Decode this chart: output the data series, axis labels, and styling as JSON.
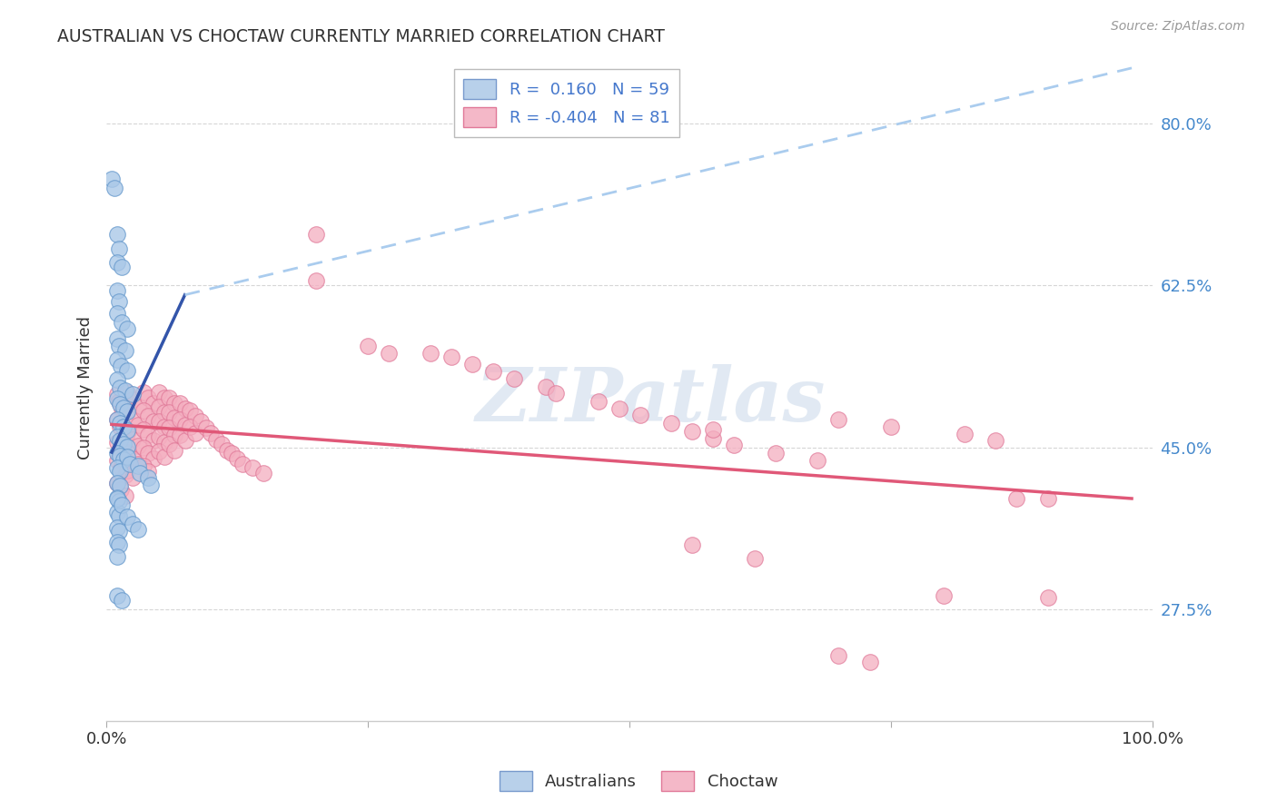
{
  "title": "AUSTRALIAN VS CHOCTAW CURRENTLY MARRIED CORRELATION CHART",
  "source": "Source: ZipAtlas.com",
  "ylabel": "Currently Married",
  "ytick_labels": [
    "27.5%",
    "45.0%",
    "62.5%",
    "80.0%"
  ],
  "ytick_values": [
    0.275,
    0.45,
    0.625,
    0.8
  ],
  "xlim": [
    0.0,
    1.0
  ],
  "ylim": [
    0.155,
    0.875
  ],
  "watermark": "ZIPatlas",
  "australian_color": "#aac8e8",
  "australian_edge": "#6699cc",
  "choctaw_color": "#f4aec0",
  "choctaw_edge": "#e07898",
  "trend_australian_solid_color": "#3355aa",
  "trend_dash_color": "#aaccee",
  "trend_choctaw_color": "#e05878",
  "trend_aus_x0": 0.005,
  "trend_aus_x_solid_end": 0.075,
  "trend_aus_x_dash_end": 0.98,
  "trend_aus_y0": 0.445,
  "trend_aus_y_solid_end": 0.615,
  "trend_aus_y_dash_end": 0.86,
  "trend_choc_x0": 0.005,
  "trend_choc_x1": 0.98,
  "trend_choc_y0": 0.475,
  "trend_choc_y1": 0.395,
  "australian_points": [
    [
      0.005,
      0.74
    ],
    [
      0.008,
      0.73
    ],
    [
      0.01,
      0.68
    ],
    [
      0.012,
      0.665
    ],
    [
      0.01,
      0.65
    ],
    [
      0.015,
      0.645
    ],
    [
      0.01,
      0.62
    ],
    [
      0.012,
      0.608
    ],
    [
      0.01,
      0.595
    ],
    [
      0.015,
      0.585
    ],
    [
      0.02,
      0.578
    ],
    [
      0.01,
      0.568
    ],
    [
      0.012,
      0.56
    ],
    [
      0.018,
      0.555
    ],
    [
      0.01,
      0.545
    ],
    [
      0.014,
      0.538
    ],
    [
      0.02,
      0.533
    ],
    [
      0.01,
      0.523
    ],
    [
      0.013,
      0.515
    ],
    [
      0.018,
      0.512
    ],
    [
      0.025,
      0.508
    ],
    [
      0.01,
      0.503
    ],
    [
      0.013,
      0.497
    ],
    [
      0.016,
      0.493
    ],
    [
      0.02,
      0.489
    ],
    [
      0.01,
      0.48
    ],
    [
      0.013,
      0.476
    ],
    [
      0.016,
      0.472
    ],
    [
      0.02,
      0.469
    ],
    [
      0.01,
      0.462
    ],
    [
      0.013,
      0.458
    ],
    [
      0.016,
      0.454
    ],
    [
      0.02,
      0.451
    ],
    [
      0.01,
      0.444
    ],
    [
      0.013,
      0.441
    ],
    [
      0.016,
      0.437
    ],
    [
      0.01,
      0.428
    ],
    [
      0.013,
      0.424
    ],
    [
      0.01,
      0.412
    ],
    [
      0.013,
      0.409
    ],
    [
      0.01,
      0.396
    ],
    [
      0.012,
      0.392
    ],
    [
      0.01,
      0.38
    ],
    [
      0.012,
      0.376
    ],
    [
      0.01,
      0.364
    ],
    [
      0.012,
      0.36
    ],
    [
      0.01,
      0.348
    ],
    [
      0.012,
      0.345
    ],
    [
      0.01,
      0.332
    ],
    [
      0.02,
      0.44
    ],
    [
      0.022,
      0.432
    ],
    [
      0.03,
      0.43
    ],
    [
      0.032,
      0.422
    ],
    [
      0.04,
      0.418
    ],
    [
      0.042,
      0.41
    ],
    [
      0.01,
      0.395
    ],
    [
      0.015,
      0.388
    ],
    [
      0.02,
      0.375
    ],
    [
      0.025,
      0.368
    ],
    [
      0.03,
      0.362
    ],
    [
      0.01,
      0.29
    ],
    [
      0.015,
      0.285
    ]
  ],
  "choctaw_points": [
    [
      0.01,
      0.508
    ],
    [
      0.012,
      0.5
    ],
    [
      0.015,
      0.492
    ],
    [
      0.01,
      0.48
    ],
    [
      0.013,
      0.472
    ],
    [
      0.016,
      0.464
    ],
    [
      0.01,
      0.456
    ],
    [
      0.014,
      0.448
    ],
    [
      0.018,
      0.444
    ],
    [
      0.01,
      0.436
    ],
    [
      0.014,
      0.428
    ],
    [
      0.018,
      0.42
    ],
    [
      0.01,
      0.412
    ],
    [
      0.014,
      0.405
    ],
    [
      0.018,
      0.398
    ],
    [
      0.02,
      0.51
    ],
    [
      0.025,
      0.502
    ],
    [
      0.03,
      0.495
    ],
    [
      0.02,
      0.488
    ],
    [
      0.025,
      0.48
    ],
    [
      0.03,
      0.474
    ],
    [
      0.02,
      0.466
    ],
    [
      0.025,
      0.459
    ],
    [
      0.03,
      0.452
    ],
    [
      0.02,
      0.445
    ],
    [
      0.025,
      0.438
    ],
    [
      0.03,
      0.432
    ],
    [
      0.02,
      0.425
    ],
    [
      0.025,
      0.418
    ],
    [
      0.035,
      0.51
    ],
    [
      0.04,
      0.504
    ],
    [
      0.045,
      0.498
    ],
    [
      0.035,
      0.49
    ],
    [
      0.04,
      0.484
    ],
    [
      0.045,
      0.478
    ],
    [
      0.035,
      0.47
    ],
    [
      0.04,
      0.464
    ],
    [
      0.045,
      0.458
    ],
    [
      0.035,
      0.45
    ],
    [
      0.04,
      0.444
    ],
    [
      0.045,
      0.438
    ],
    [
      0.035,
      0.43
    ],
    [
      0.04,
      0.424
    ],
    [
      0.05,
      0.51
    ],
    [
      0.055,
      0.504
    ],
    [
      0.05,
      0.494
    ],
    [
      0.055,
      0.488
    ],
    [
      0.05,
      0.478
    ],
    [
      0.055,
      0.472
    ],
    [
      0.05,
      0.462
    ],
    [
      0.055,
      0.456
    ],
    [
      0.05,
      0.446
    ],
    [
      0.055,
      0.44
    ],
    [
      0.06,
      0.504
    ],
    [
      0.065,
      0.498
    ],
    [
      0.06,
      0.488
    ],
    [
      0.065,
      0.482
    ],
    [
      0.06,
      0.471
    ],
    [
      0.065,
      0.464
    ],
    [
      0.06,
      0.454
    ],
    [
      0.065,
      0.447
    ],
    [
      0.07,
      0.498
    ],
    [
      0.075,
      0.492
    ],
    [
      0.07,
      0.48
    ],
    [
      0.075,
      0.474
    ],
    [
      0.07,
      0.464
    ],
    [
      0.075,
      0.458
    ],
    [
      0.08,
      0.49
    ],
    [
      0.085,
      0.484
    ],
    [
      0.08,
      0.472
    ],
    [
      0.085,
      0.466
    ],
    [
      0.09,
      0.478
    ],
    [
      0.095,
      0.471
    ],
    [
      0.1,
      0.466
    ],
    [
      0.105,
      0.459
    ],
    [
      0.11,
      0.454
    ],
    [
      0.115,
      0.447
    ],
    [
      0.12,
      0.444
    ],
    [
      0.125,
      0.438
    ],
    [
      0.13,
      0.432
    ],
    [
      0.14,
      0.428
    ],
    [
      0.15,
      0.422
    ],
    [
      0.2,
      0.68
    ],
    [
      0.2,
      0.63
    ],
    [
      0.25,
      0.56
    ],
    [
      0.27,
      0.552
    ],
    [
      0.31,
      0.552
    ],
    [
      0.33,
      0.548
    ],
    [
      0.35,
      0.54
    ],
    [
      0.37,
      0.532
    ],
    [
      0.39,
      0.524
    ],
    [
      0.42,
      0.516
    ],
    [
      0.43,
      0.509
    ],
    [
      0.47,
      0.5
    ],
    [
      0.49,
      0.492
    ],
    [
      0.51,
      0.485
    ],
    [
      0.54,
      0.476
    ],
    [
      0.56,
      0.468
    ],
    [
      0.58,
      0.46
    ],
    [
      0.6,
      0.453
    ],
    [
      0.64,
      0.444
    ],
    [
      0.68,
      0.436
    ],
    [
      0.58,
      0.47
    ],
    [
      0.7,
      0.48
    ],
    [
      0.75,
      0.472
    ],
    [
      0.82,
      0.465
    ],
    [
      0.85,
      0.458
    ],
    [
      0.87,
      0.395
    ],
    [
      0.9,
      0.395
    ],
    [
      0.8,
      0.29
    ],
    [
      0.9,
      0.288
    ],
    [
      0.56,
      0.345
    ],
    [
      0.62,
      0.33
    ],
    [
      0.7,
      0.225
    ],
    [
      0.73,
      0.218
    ]
  ]
}
